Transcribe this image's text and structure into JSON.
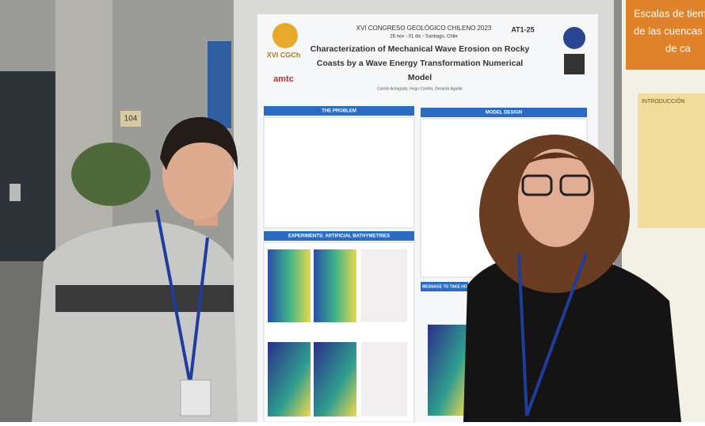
{
  "poster": {
    "congress": "XVI CONGRESO GEOLÓGICO CHILENO 2023",
    "dates": "26 nov - 01 dic - Santiago, Chile",
    "code": "AT1-25",
    "logo": "XVI CGCh",
    "sponsor": "amtc",
    "title_lines": [
      "Characterization of Mechanical Wave Erosion on Rocky",
      "Coasts by a Wave Energy Transformation Numerical",
      "Model"
    ],
    "authors": "Camilo Arriagada, Hugo Carrillo, Gerardo Aguilar",
    "sections": [
      "THE PROBLEM",
      "MODEL DESIGN",
      "EXPERIMENTS: ARTIFICIAL BATHYMETRIES",
      "MESSAGE TO TAKE HOME"
    ]
  },
  "side_poster": {
    "title_lines": [
      "Escalas de tiemp",
      "de las cuencas de",
      "de ca"
    ],
    "heading": "INTRODUCCIÓN"
  },
  "room_sign": "104"
}
